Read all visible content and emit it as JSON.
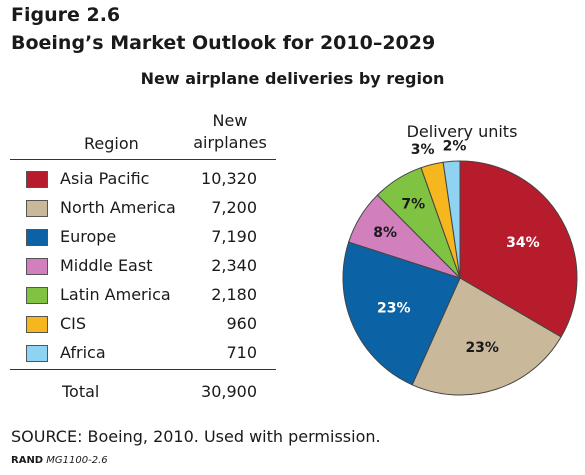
{
  "figure": {
    "label": "Figure 2.6",
    "title": "Boeing’s Market Outlook for 2010–2029",
    "subtitle": "New airplane deliveries by region"
  },
  "table": {
    "header_region": "Region",
    "header_count_line1": "New",
    "header_count_line2": "airplanes",
    "total_label": "Total",
    "total_value": "30,900"
  },
  "chart_data": {
    "type": "pie",
    "title": "Delivery units",
    "slices": [
      {
        "name": "Asia Pacific",
        "value": 10320,
        "value_label": "10,320",
        "percent_label": "34%",
        "color": "#b71c2c"
      },
      {
        "name": "North America",
        "value": 7200,
        "value_label": "7,200",
        "percent_label": "23%",
        "color": "#c9b89a"
      },
      {
        "name": "Europe",
        "value": 7190,
        "value_label": "7,190",
        "percent_label": "23%",
        "color": "#0b63a6"
      },
      {
        "name": "Middle East",
        "value": 2340,
        "value_label": "2,340",
        "percent_label": "8%",
        "color": "#d27fbd"
      },
      {
        "name": "Latin America",
        "value": 2180,
        "value_label": "2,180",
        "percent_label": "7%",
        "color": "#80c342"
      },
      {
        "name": "CIS",
        "value": 960,
        "value_label": "960",
        "percent_label": "3%",
        "color": "#f6b61d"
      },
      {
        "name": "Africa",
        "value": 710,
        "value_label": "710",
        "percent_label": "2%",
        "color": "#8fd3f2"
      }
    ]
  },
  "source": "SOURCE: Boeing, 2010. Used with permission.",
  "footer": {
    "org": "RAND",
    "doc": "MG1100-2.6"
  }
}
